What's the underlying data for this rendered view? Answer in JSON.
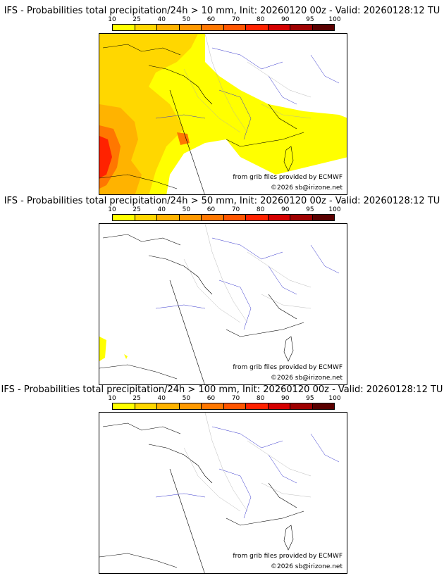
{
  "colorbar": {
    "ticks": [
      "10",
      "25",
      "40",
      "50",
      "60",
      "70",
      "80",
      "90",
      "95",
      "100"
    ],
    "colors": [
      "#ffff00",
      "#ffd700",
      "#ffb300",
      "#ff9900",
      "#ff7700",
      "#ff5500",
      "#ff2200",
      "#d40000",
      "#9e0000",
      "#5a0000"
    ]
  },
  "panels": [
    {
      "title": "IFS - Probabilities total precipitation/24h > 10 mm, Init: 20260120 00z - Valid: 20260128:12 TU",
      "source": "from grib files provided by ECMWF",
      "copyright": "©2026 sb@irizone.net"
    },
    {
      "title": "IFS - Probabilities total precipitation/24h > 50 mm, Init: 20260120 00z - Valid: 20260128:12 TU",
      "source": "from grib files provided by ECMWF",
      "copyright": "©2026 sb@irizone.net"
    },
    {
      "title": "IFS - Probabilities total precipitation/24h > 100 mm, Init: 20260120 00z - Valid: 20260128:12 TU",
      "source": "from grib files provided by ECMWF",
      "copyright": "©2026 sb@irizone.net"
    }
  ]
}
